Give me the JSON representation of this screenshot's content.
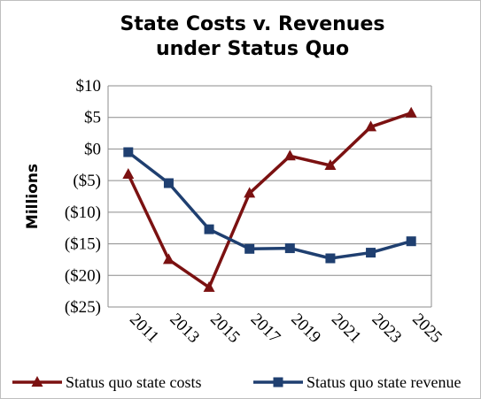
{
  "chart_data": {
    "type": "line",
    "title_lines": [
      "State Costs v. Revenues",
      "under Status Quo"
    ],
    "xlabel": "",
    "ylabel": "Millions",
    "categories": [
      "2011",
      "2013",
      "2015",
      "2017",
      "2019",
      "2021",
      "2023",
      "2025"
    ],
    "y_ticks": [
      {
        "value": 10,
        "label": "$10"
      },
      {
        "value": 5,
        "label": "$5"
      },
      {
        "value": 0,
        "label": "$0"
      },
      {
        "value": -5,
        "label": "($5)"
      },
      {
        "value": -10,
        "label": "($10)"
      },
      {
        "value": -15,
        "label": "($15)"
      },
      {
        "value": -20,
        "label": "($20)"
      },
      {
        "value": -25,
        "label": "($25)"
      }
    ],
    "ylim": [
      -25,
      10
    ],
    "grid": true,
    "legend_position": "bottom",
    "series": [
      {
        "name": "Status quo state costs",
        "color": "#7b1111",
        "marker": "triangle",
        "values": [
          -4.0,
          -17.5,
          -21.9,
          -7.0,
          -1.1,
          -2.6,
          3.5,
          5.7
        ]
      },
      {
        "name": "Status quo state revenue",
        "color": "#1f3f70",
        "marker": "square",
        "values": [
          -0.5,
          -5.4,
          -12.7,
          -15.8,
          -15.7,
          -17.3,
          -16.4,
          -14.6
        ]
      }
    ]
  }
}
